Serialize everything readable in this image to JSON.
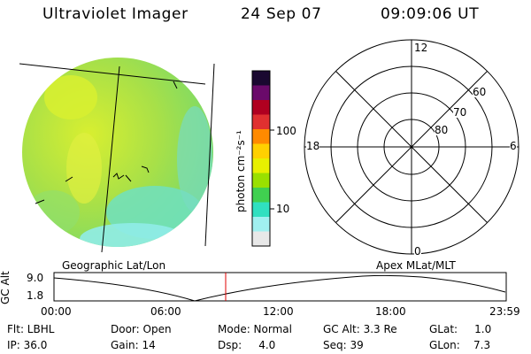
{
  "header": {
    "instrument": "Ultraviolet Imager",
    "date": "24 Sep 07",
    "time": "09:09:06 UT"
  },
  "colorbar": {
    "unit_label": "photon cm⁻²s⁻¹",
    "ticks": [
      "100",
      "10"
    ],
    "colors": [
      "#1a0830",
      "#6a0a6a",
      "#b00020",
      "#e03030",
      "#ff8a00",
      "#ffd000",
      "#e8f000",
      "#9ae000",
      "#40d050",
      "#30e0c0",
      "#a0f0f0",
      "#e8e8e8"
    ]
  },
  "polar_grid": {
    "mlt_labels": {
      "top": "12",
      "left": "18",
      "right": "6",
      "bottom": "0"
    },
    "lat_labels": [
      "60",
      "70",
      "80"
    ]
  },
  "orbit_panel": {
    "left_title": "Geographic Lat/Lon",
    "right_title": "Apex MLat/MLT",
    "y_axis_label": "GC Alt",
    "y_ticks": [
      "9.0",
      "1.8"
    ],
    "x_ticks": [
      "00:00",
      "06:00",
      "12:00",
      "18:00",
      "23:59"
    ],
    "marker_color": "#e00000"
  },
  "footer": {
    "flt": "Flt: LBHL",
    "ip": "IP: 36.0",
    "door": "Door: Open",
    "gain": "Gain: 14",
    "mode": "Mode: Normal",
    "dsp": "Dsp:     4.0",
    "gc_alt": "GC Alt: 3.3 Re",
    "seq": "Seq: 39",
    "glat": "GLat:     1.0",
    "glon": "GLon:    7.3"
  }
}
